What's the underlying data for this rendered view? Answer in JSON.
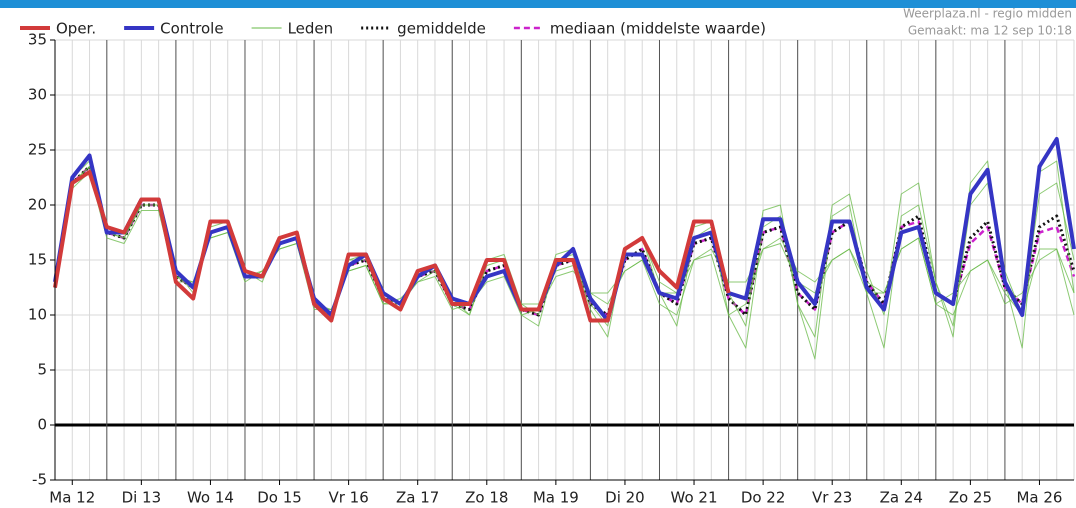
{
  "chart_data": {
    "type": "line",
    "source": "Weerplaza.nl - regio midden",
    "created": "Gemaakt: ma 12 sep 10:18",
    "x": [
      6,
      12,
      18,
      24,
      30,
      36,
      42,
      48,
      54,
      60,
      66,
      72,
      78,
      84,
      90,
      96,
      102,
      108,
      114,
      120,
      126,
      132,
      138,
      144,
      150,
      156,
      162,
      168,
      174,
      180,
      186,
      192,
      198,
      204,
      210,
      216,
      222,
      228,
      234,
      240,
      246,
      252,
      258,
      264,
      270,
      276,
      282,
      288,
      294,
      300,
      306,
      312,
      318,
      324,
      330,
      336,
      342,
      348,
      354,
      360
    ],
    "xlim": [
      6,
      360
    ],
    "xticks": [
      {
        "value": 12,
        "label": "Ma 12"
      },
      {
        "value": 36,
        "label": "Di 13"
      },
      {
        "value": 60,
        "label": "Wo 14"
      },
      {
        "value": 84,
        "label": "Do 15"
      },
      {
        "value": 108,
        "label": "Vr 16"
      },
      {
        "value": 132,
        "label": "Za 17"
      },
      {
        "value": 156,
        "label": "Zo 18"
      },
      {
        "value": 180,
        "label": "Ma 19"
      },
      {
        "value": 204,
        "label": "Di 20"
      },
      {
        "value": 228,
        "label": "Wo 21"
      },
      {
        "value": 252,
        "label": "Do 22"
      },
      {
        "value": 276,
        "label": "Vr 23"
      },
      {
        "value": 300,
        "label": "Za 24"
      },
      {
        "value": 324,
        "label": "Zo 25"
      },
      {
        "value": 348,
        "label": "Ma 26"
      }
    ],
    "ylim": [
      -5,
      35
    ],
    "yticks": [
      -5,
      0,
      5,
      10,
      15,
      20,
      25,
      30,
      35
    ],
    "grid": true,
    "series": [
      {
        "name": "Oper.",
        "color": "#d23a3a",
        "values": [
          12.5,
          22,
          23,
          18,
          17.5,
          20.5,
          20.5,
          13,
          11.5,
          18.5,
          18.5,
          14,
          13.5,
          17,
          17.5,
          11,
          9.5,
          15.5,
          15.5,
          11.5,
          10.5,
          14,
          14.5,
          11,
          11,
          15,
          15,
          10.5,
          10.5,
          15,
          15,
          9.5,
          9.5,
          16,
          17,
          14,
          12.5,
          18.5,
          18.5,
          12,
          null,
          null,
          null,
          null,
          null,
          null,
          null,
          null,
          null,
          null,
          null,
          null,
          null,
          null,
          null,
          null,
          null,
          null,
          null,
          null
        ]
      },
      {
        "name": "Controle",
        "color": "#3535c4",
        "values": [
          13,
          22.5,
          24.5,
          17.5,
          17.5,
          20.5,
          20.5,
          14,
          12.5,
          17.5,
          18,
          13.5,
          13.5,
          16.5,
          17,
          11.5,
          10,
          14.5,
          15.5,
          12,
          11,
          13.5,
          14.5,
          11.5,
          11,
          13.5,
          14,
          10.5,
          10.5,
          14.5,
          16,
          11.5,
          9.5,
          15.5,
          15.5,
          12,
          11.5,
          17,
          17.5,
          12,
          11.5,
          18.7,
          18.7,
          13,
          11,
          18.5,
          18.5,
          12.5,
          10.5,
          17.5,
          18,
          12,
          11,
          21,
          23.2,
          13,
          10,
          23.5,
          26,
          16
        ]
      },
      {
        "name": "Leden",
        "color": "#66b844",
        "members": [
          {
            "values": [
              12.5,
              22.5,
              24,
              18,
              17.5,
              20.5,
              20.5,
              14,
              12,
              18,
              18.5,
              14,
              13,
              17,
              17.5,
              11.5,
              10,
              15,
              15.5,
              12,
              11,
              14,
              14.5,
              11.5,
              10,
              15,
              15.5,
              11,
              10,
              15.5,
              16,
              11,
              9,
              16,
              17,
              13,
              12,
              18,
              18.5,
              12,
              9,
              19.5,
              20,
              11,
              8,
              20,
              21,
              14,
              10,
              21,
              22,
              13,
              9,
              20,
              22,
              14,
              10,
              21,
              22,
              15
            ]
          },
          {
            "values": [
              12.5,
              21.5,
              23,
              17,
              16.5,
              19.5,
              19.5,
              13,
              13,
              17,
              17.5,
              13,
              14,
              16,
              16.5,
              10.5,
              10.5,
              14,
              14.5,
              11,
              11.5,
              13,
              13.5,
              10.5,
              11,
              13,
              13.5,
              10,
              10.5,
              13.5,
              14,
              12,
              11,
              14,
              15,
              11,
              10,
              15,
              15.5,
              10,
              11,
              16,
              16.5,
              13,
              12,
              15,
              16,
              12,
              12,
              16,
              17,
              11,
              12,
              14,
              15,
              11,
              12,
              15,
              16,
              12
            ]
          },
          {
            "values": [
              12.5,
              22,
              23.5,
              17.5,
              17,
              20,
              20,
              13.5,
              12.5,
              17.5,
              18,
              13.5,
              13.5,
              16.5,
              17,
              11,
              9.5,
              15,
              15,
              11.5,
              10.5,
              14,
              14,
              11,
              10,
              14.5,
              15,
              10,
              9,
              15,
              15.5,
              10.5,
              8,
              16,
              17,
              12,
              9,
              17,
              18,
              10,
              7,
              18,
              19,
              11,
              6,
              19,
              20,
              12,
              7,
              19,
              20,
              13,
              8,
              22,
              24,
              13,
              7,
              23,
              24,
              12
            ]
          },
          {
            "values": [
              12.5,
              22,
              23.5,
              17.5,
              17,
              20,
              20,
              13.5,
              13,
              17,
              17.5,
              13.5,
              14,
              16,
              16.5,
              11,
              10.5,
              14,
              14.5,
              11,
              11,
              13,
              14,
              11,
              11,
              13.5,
              14,
              11,
              11,
              14,
              14.5,
              12,
              12,
              14,
              15,
              12,
              12,
              15,
              16,
              13,
              13,
              16,
              17,
              14,
              13,
              15,
              16,
              13,
              12,
              16,
              17,
              11,
              10,
              14,
              15,
              12,
              10,
              16,
              16,
              10
            ]
          }
        ]
      },
      {
        "name": "gemiddelde",
        "color": "#111111",
        "style": "dotted",
        "values": [
          12.5,
          22,
          23.5,
          17.5,
          17,
          20,
          20,
          13.5,
          12.5,
          17.5,
          18,
          13.5,
          13.5,
          16.5,
          17,
          11,
          10,
          14.5,
          15,
          11.5,
          11,
          13.5,
          14,
          11,
          10.5,
          14,
          14.5,
          10.5,
          10,
          14.5,
          15,
          11,
          10,
          15,
          16,
          12,
          11,
          16.5,
          17,
          11.5,
          10,
          17.5,
          18,
          12,
          10.5,
          17.5,
          18.5,
          13,
          11,
          18,
          19,
          12,
          11,
          17,
          18.5,
          12.5,
          11,
          18,
          19,
          14
        ]
      },
      {
        "name": "mediaan (middelste waarde)",
        "color": "#cc22cc",
        "style": "dashed",
        "values": [
          12.5,
          22,
          23.5,
          17.5,
          17,
          20,
          20,
          13.5,
          12.5,
          17.5,
          18,
          13.5,
          13.5,
          16.5,
          17,
          11,
          10,
          14.5,
          15,
          11.5,
          11,
          13.5,
          14,
          11,
          10.5,
          14,
          14.5,
          10.5,
          10,
          14.5,
          15,
          11,
          10,
          15,
          16,
          12,
          11,
          16.5,
          17,
          11.5,
          10,
          17.5,
          18,
          12,
          10.5,
          17.5,
          18.5,
          13,
          11,
          18,
          18.5,
          12,
          11,
          16.5,
          18,
          12.5,
          11,
          17.5,
          18,
          13.5
        ]
      }
    ]
  }
}
